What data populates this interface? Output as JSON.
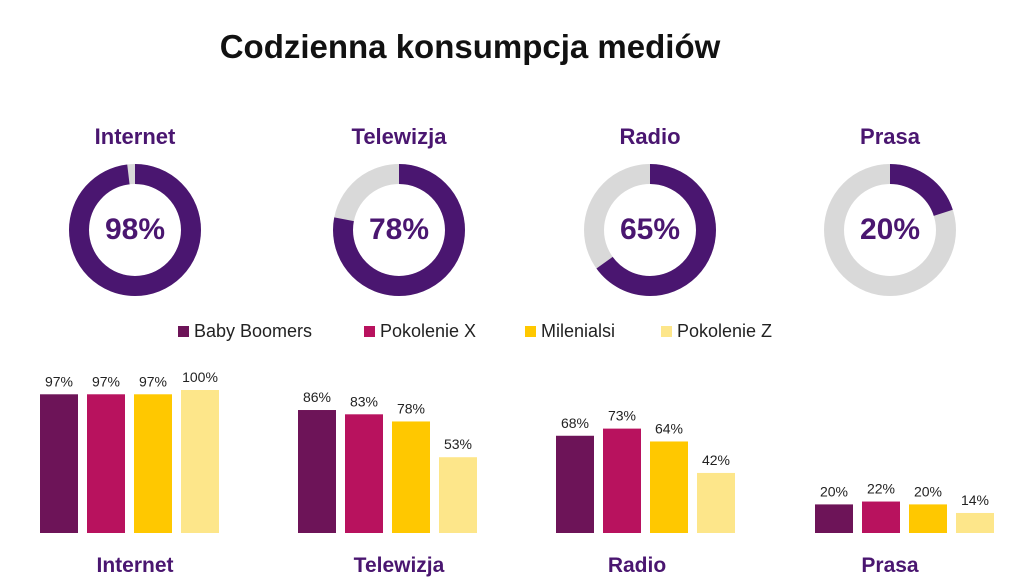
{
  "title": "Codzienna konsumpcja mediów",
  "colors": {
    "accent": "#4a1670",
    "donut_rest": "#d9d9d9",
    "text": "#111111"
  },
  "chart_data": [
    {
      "type": "pie",
      "subtype": "donut",
      "groups": [
        {
          "label": "Internet",
          "value": 98,
          "value_label": "98%"
        },
        {
          "label": "Telewizja",
          "value": 78,
          "value_label": "78%"
        },
        {
          "label": "Radio",
          "value": 65,
          "value_label": "65%"
        },
        {
          "label": "Prasa",
          "value": 20,
          "value_label": "20%"
        }
      ]
    },
    {
      "type": "bar",
      "categories": [
        "Internet",
        "Telewizja",
        "Radio",
        "Prasa"
      ],
      "legend_position": "top",
      "ylim": [
        0,
        100
      ],
      "series": [
        {
          "name": "Baby Boomers",
          "color": "#6d1458",
          "values": [
            97,
            86,
            68,
            20
          ],
          "labels": [
            "97%",
            "86%",
            "68%",
            "20%"
          ]
        },
        {
          "name": "Pokolenie X",
          "color": "#b8125e",
          "values": [
            97,
            83,
            73,
            22
          ],
          "labels": [
            "97%",
            "83%",
            "73%",
            "22%"
          ]
        },
        {
          "name": "Milenialsi",
          "color": "#ffc800",
          "values": [
            97,
            78,
            64,
            20
          ],
          "labels": [
            "97%",
            "78%",
            "64%",
            "20%"
          ]
        },
        {
          "name": "Pokolenie Z",
          "color": "#fde68a",
          "values": [
            100,
            53,
            42,
            14
          ],
          "labels": [
            "100%",
            "53%",
            "42%",
            "14%"
          ]
        }
      ]
    }
  ]
}
